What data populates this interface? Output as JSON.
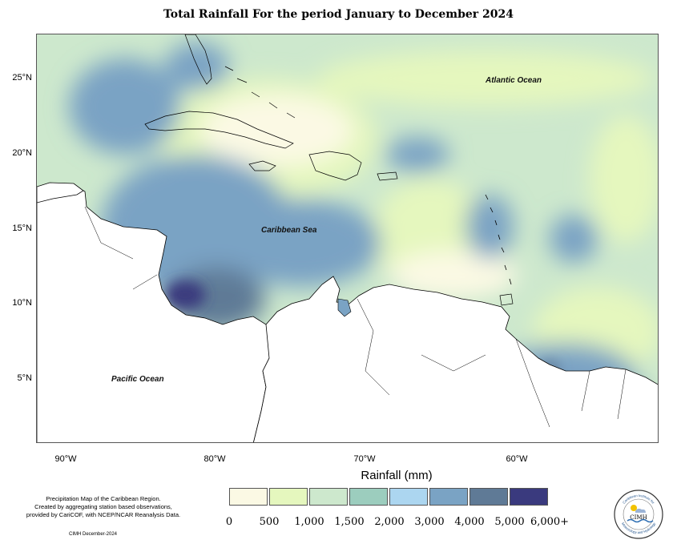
{
  "title": "Total Rainfall For the period January to December 2024",
  "map": {
    "ocean_labels": [
      {
        "id": "atlantic",
        "text": "Atlantic Ocean"
      },
      {
        "id": "caribbean",
        "text": "Caribbean Sea"
      },
      {
        "id": "pacific",
        "text": "Pacific Ocean"
      }
    ],
    "lat_labels": [
      "25°N",
      "20°N",
      "15°N",
      "10°N",
      "5°N"
    ],
    "lon_labels": [
      "90°W",
      "80°W",
      "70°W",
      "60°W"
    ]
  },
  "legend": {
    "title": "Rainfall (mm)",
    "colors": [
      "#fbf9e4",
      "#e5f7be",
      "#cde8cd",
      "#9ccdbe",
      "#acd6f0",
      "#7aa3c4",
      "#5f7a96",
      "#3a3a7e"
    ],
    "ticks": [
      "0",
      "500",
      "1,000",
      "1,500",
      "2,000",
      "3,000",
      "4,000",
      "5,000",
      "6,000+"
    ]
  },
  "credits": {
    "line1": "Precipitation Map of the Caribbean Region.",
    "line2": "Created by aggregating station based observations,",
    "line3": "provided by CariCOF, with NCEP/NCAR Reanalysis Data.",
    "date": "CIMH December-2024"
  },
  "logo": {
    "name": "CIMH",
    "top_text": "Caribbean Institute for",
    "bottom_text": "Meteorology and Hydrology"
  }
}
